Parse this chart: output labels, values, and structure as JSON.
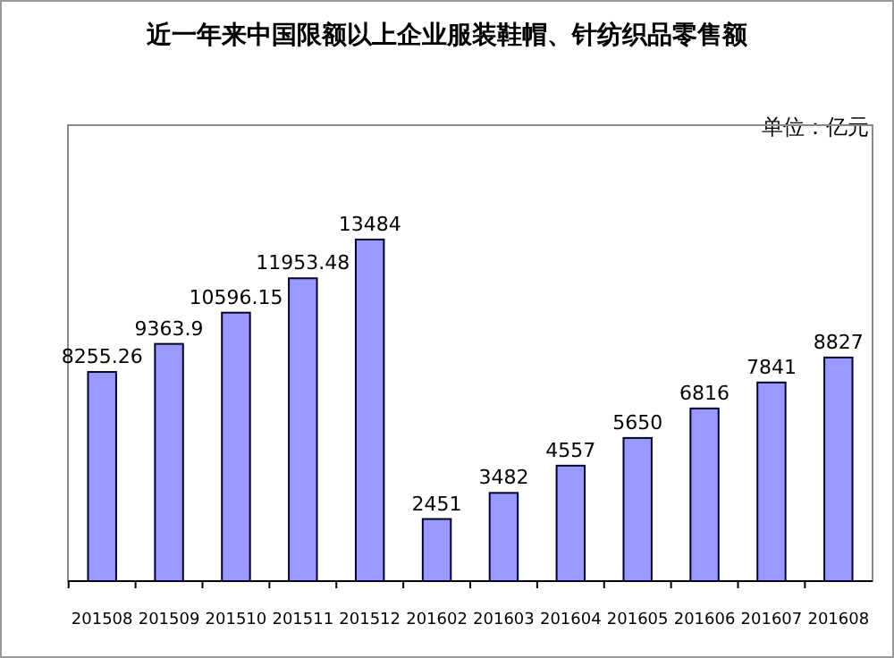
{
  "chart_data": {
    "type": "bar",
    "title": "近一年来中国限额以上企业服装鞋帽、针纺织品零售额",
    "annotations": [
      "单位：亿元"
    ],
    "categories": [
      "201508",
      "201509",
      "201510",
      "201511",
      "201512",
      "201602",
      "201603",
      "201604",
      "201605",
      "201606",
      "201607",
      "201608"
    ],
    "values": [
      8255.26,
      9363.9,
      10596.15,
      11953.48,
      13484,
      2451,
      3482,
      4557,
      5650,
      6816,
      7841,
      8827
    ],
    "color": "#9999ff",
    "data_labels": true
  }
}
